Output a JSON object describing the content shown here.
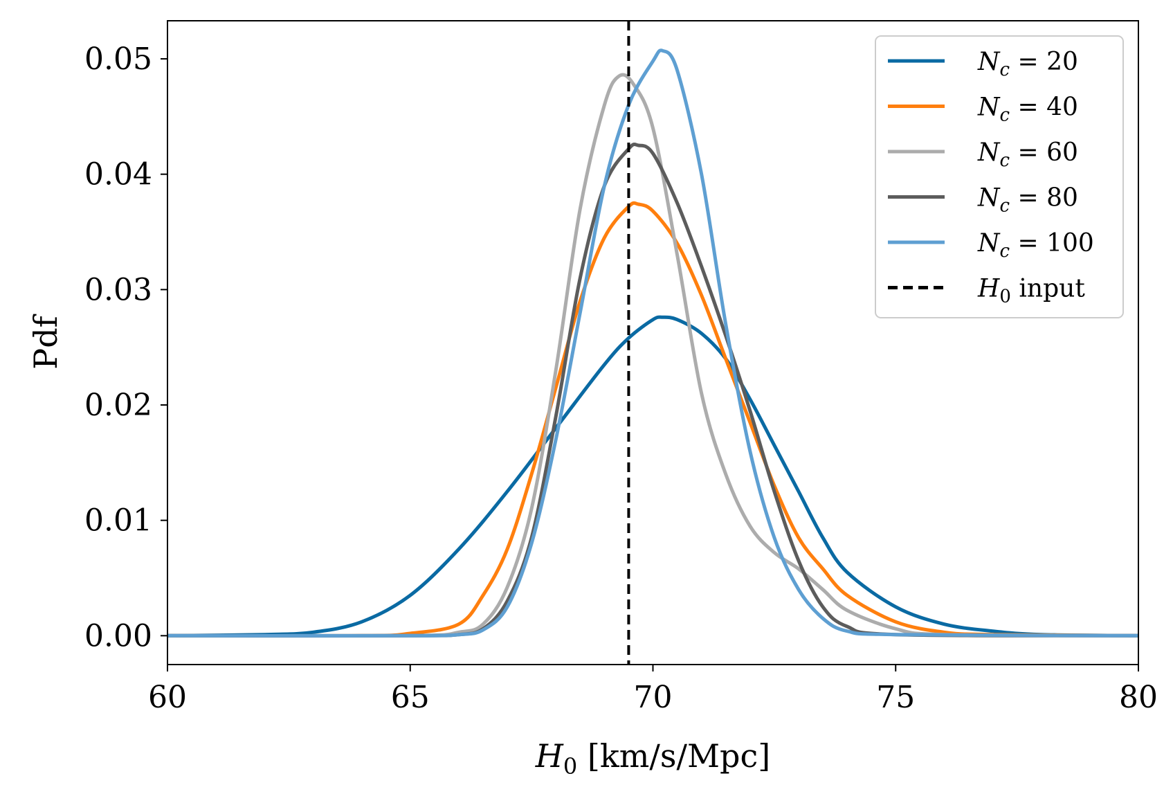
{
  "chart_data": {
    "type": "line",
    "xlabel_symbol": "H",
    "xlabel_sub": "0",
    "xlabel_unit": " [km/s/Mpc]",
    "ylabel": "Pdf",
    "xlim": [
      60,
      80
    ],
    "ylim": [
      -0.0025,
      0.0533
    ],
    "x_ticks": [
      60,
      65,
      70,
      75,
      80
    ],
    "x_tick_labels": [
      "60",
      "65",
      "70",
      "75",
      "80"
    ],
    "y_ticks": [
      0.0,
      0.01,
      0.02,
      0.03,
      0.04,
      0.05
    ],
    "y_tick_labels": [
      "0.00",
      "0.01",
      "0.02",
      "0.03",
      "0.04",
      "0.05"
    ],
    "legend_position": "top-right",
    "series": [
      {
        "name": "N_c = 20",
        "label_symbol": "N",
        "label_sub": "c",
        "label_rest": " = 20",
        "color": "#0a6aa3",
        "points": [
          [
            60,
            0
          ],
          [
            62,
            0.0001
          ],
          [
            63,
            0.0003
          ],
          [
            64,
            0.0012
          ],
          [
            65,
            0.0035
          ],
          [
            66,
            0.0075
          ],
          [
            67,
            0.0125
          ],
          [
            68,
            0.018
          ],
          [
            69,
            0.0235
          ],
          [
            69.5,
            0.0258
          ],
          [
            70,
            0.0274
          ],
          [
            70.2,
            0.0276
          ],
          [
            70.5,
            0.0274
          ],
          [
            71,
            0.0262
          ],
          [
            71.5,
            0.024
          ],
          [
            72,
            0.0205
          ],
          [
            72.5,
            0.0165
          ],
          [
            73,
            0.0125
          ],
          [
            73.5,
            0.0085
          ],
          [
            74,
            0.0055
          ],
          [
            75,
            0.0025
          ],
          [
            76,
            0.001
          ],
          [
            77,
            0.0004
          ],
          [
            78,
            0.0001
          ],
          [
            80,
            0
          ]
        ]
      },
      {
        "name": "N_c = 40",
        "label_symbol": "N",
        "label_sub": "c",
        "label_rest": " = 40",
        "color": "#ff7f0e",
        "points": [
          [
            60,
            0
          ],
          [
            64,
            0
          ],
          [
            65,
            0.0002
          ],
          [
            66,
            0.001
          ],
          [
            66.5,
            0.0035
          ],
          [
            67,
            0.0075
          ],
          [
            67.5,
            0.014
          ],
          [
            68,
            0.0215
          ],
          [
            68.5,
            0.029
          ],
          [
            69,
            0.0345
          ],
          [
            69.5,
            0.0372
          ],
          [
            69.7,
            0.0374
          ],
          [
            70,
            0.0368
          ],
          [
            70.5,
            0.034
          ],
          [
            71,
            0.0295
          ],
          [
            71.5,
            0.024
          ],
          [
            72,
            0.0185
          ],
          [
            72.5,
            0.013
          ],
          [
            73,
            0.0085
          ],
          [
            73.5,
            0.0058
          ],
          [
            74,
            0.0035
          ],
          [
            75,
            0.0012
          ],
          [
            76,
            0.0003
          ],
          [
            77,
            0.0001
          ],
          [
            80,
            0
          ]
        ]
      },
      {
        "name": "N_c = 60",
        "label_symbol": "N",
        "label_sub": "c",
        "label_rest": " = 60",
        "color": "#acacac",
        "points": [
          [
            60,
            0
          ],
          [
            65,
            0
          ],
          [
            66,
            0.0003
          ],
          [
            66.5,
            0.001
          ],
          [
            67,
            0.0042
          ],
          [
            67.5,
            0.011
          ],
          [
            68,
            0.023
          ],
          [
            68.5,
            0.037
          ],
          [
            69,
            0.046
          ],
          [
            69.3,
            0.0485
          ],
          [
            69.6,
            0.0478
          ],
          [
            70,
            0.044
          ],
          [
            70.5,
            0.033
          ],
          [
            71,
            0.021
          ],
          [
            71.5,
            0.014
          ],
          [
            72,
            0.0095
          ],
          [
            72.5,
            0.0072
          ],
          [
            73,
            0.0058
          ],
          [
            73.5,
            0.004
          ],
          [
            74,
            0.0022
          ],
          [
            75,
            0.0006
          ],
          [
            76,
            0.0001
          ],
          [
            80,
            0
          ]
        ]
      },
      {
        "name": "N_c = 80",
        "label_symbol": "N",
        "label_sub": "c",
        "label_rest": " = 80",
        "color": "#5c5c5c",
        "points": [
          [
            60,
            0
          ],
          [
            65,
            0
          ],
          [
            66,
            0.0001
          ],
          [
            66.5,
            0.0006
          ],
          [
            67,
            0.003
          ],
          [
            67.5,
            0.0085
          ],
          [
            68,
            0.019
          ],
          [
            68.5,
            0.031
          ],
          [
            69,
            0.039
          ],
          [
            69.5,
            0.0422
          ],
          [
            69.7,
            0.0425
          ],
          [
            70,
            0.0418
          ],
          [
            70.5,
            0.0375
          ],
          [
            71,
            0.032
          ],
          [
            71.5,
            0.026
          ],
          [
            72,
            0.0195
          ],
          [
            72.5,
            0.0125
          ],
          [
            73,
            0.0065
          ],
          [
            73.5,
            0.0025
          ],
          [
            74,
            0.0008
          ],
          [
            75,
            0.0001
          ],
          [
            80,
            0
          ]
        ]
      },
      {
        "name": "N_c = 100",
        "label_symbol": "N",
        "label_sub": "c",
        "label_rest": " = 100",
        "color": "#5e9fd2",
        "points": [
          [
            60,
            0
          ],
          [
            65,
            0
          ],
          [
            66,
            0.0001
          ],
          [
            66.5,
            0.0005
          ],
          [
            67,
            0.0025
          ],
          [
            67.5,
            0.008
          ],
          [
            68,
            0.017
          ],
          [
            68.5,
            0.028
          ],
          [
            69,
            0.039
          ],
          [
            69.5,
            0.046
          ],
          [
            70,
            0.0498
          ],
          [
            70.2,
            0.0507
          ],
          [
            70.5,
            0.049
          ],
          [
            71,
            0.04
          ],
          [
            71.5,
            0.027
          ],
          [
            72,
            0.016
          ],
          [
            72.5,
            0.0085
          ],
          [
            73,
            0.004
          ],
          [
            73.5,
            0.0015
          ],
          [
            74,
            0.0004
          ],
          [
            75,
            0.0001
          ],
          [
            80,
            0
          ]
        ]
      }
    ],
    "reference_line": {
      "name": "H_0 input",
      "label_symbol": "H",
      "label_sub": "0",
      "label_rest": " input",
      "x": 69.5,
      "color": "#000000",
      "style": "dashed"
    }
  }
}
